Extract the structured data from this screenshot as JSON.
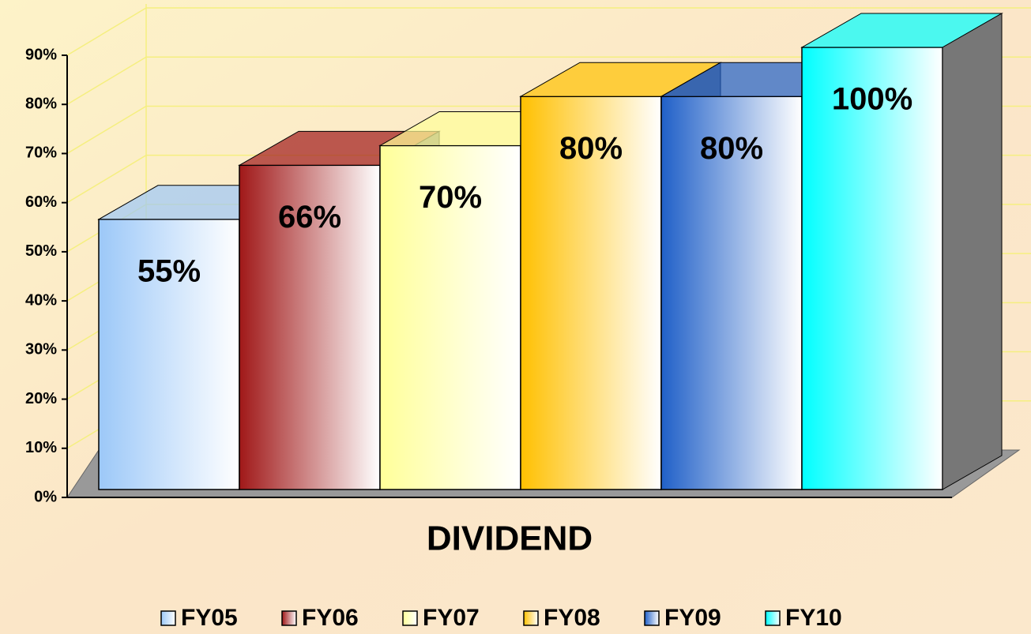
{
  "chart_data": {
    "type": "bar3d",
    "x_label": "DIVIDEND",
    "categories": [
      "FY05",
      "FY06",
      "FY07",
      "FY08",
      "FY09",
      "FY10"
    ],
    "values": [
      55,
      66,
      70,
      80,
      80,
      100
    ],
    "value_labels": [
      "55%",
      "66%",
      "70%",
      "80%",
      "80%",
      "100%"
    ],
    "colors": [
      "#9cc8f8",
      "#a01818",
      "#ffff99",
      "#ffc000",
      "#2060c8",
      "#00ffff"
    ],
    "ylim": [
      0,
      90
    ],
    "yticks": [
      {
        "value": 0,
        "label": "0%"
      },
      {
        "value": 10,
        "label": "10%"
      },
      {
        "value": 20,
        "label": "20%"
      },
      {
        "value": 30,
        "label": "30%"
      },
      {
        "value": 40,
        "label": "40%"
      },
      {
        "value": 50,
        "label": "50%"
      },
      {
        "value": 60,
        "label": "60%"
      },
      {
        "value": 70,
        "label": "70%"
      },
      {
        "value": 80,
        "label": "80%"
      },
      {
        "value": 90,
        "label": "90%"
      }
    ],
    "grid": true,
    "legend": "bottom"
  }
}
